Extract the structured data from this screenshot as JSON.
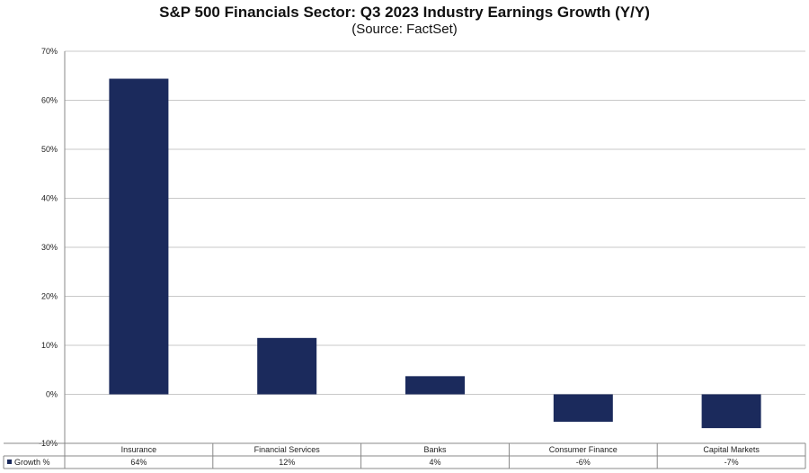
{
  "header": {
    "title": "S&P 500 Financials Sector: Q3 2023 Industry Earnings Growth (Y/Y)",
    "subtitle": "(Source: FactSet)"
  },
  "chart_data": {
    "type": "bar",
    "categories": [
      "Insurance",
      "Financial Services",
      "Banks",
      "Consumer Finance",
      "Capital Markets"
    ],
    "series": [
      {
        "name": "Growth %",
        "values": [
          64.4,
          11.5,
          3.7,
          -5.6,
          -6.9
        ],
        "labels": [
          "64%",
          "12%",
          "4%",
          "-6%",
          "-7%"
        ]
      }
    ],
    "ylim": [
      -10,
      70
    ],
    "yticks": [
      -10,
      0,
      10,
      20,
      30,
      40,
      50,
      60,
      70
    ],
    "ytick_labels": [
      "-10%",
      "0%",
      "10%",
      "20%",
      "30%",
      "40%",
      "50%",
      "60%",
      "70%"
    ],
    "grid": true,
    "bar_color": "#1b2a5c",
    "legend": "data-table"
  }
}
